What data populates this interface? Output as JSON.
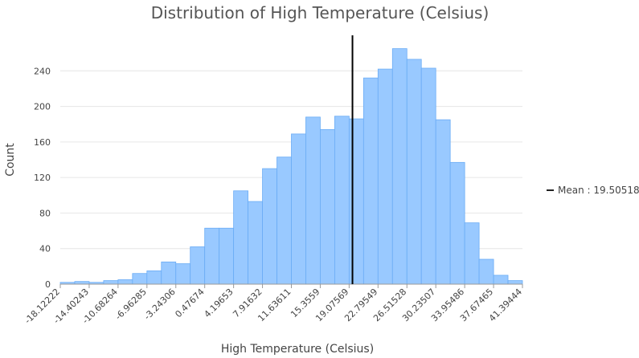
{
  "chart_data": {
    "type": "bar",
    "title": "Distribution of High Temperature (Celsius)",
    "xlabel": "High Temperature (Celsius)",
    "ylabel": "Count",
    "x_range": [
      -18.12222,
      41.39444
    ],
    "bin_width": 1.86,
    "x_tick_labels": [
      "-18.12222",
      "-14.40243",
      "-10.68264",
      "-6.96285",
      "-3.24306",
      "0.47674",
      "4.19653",
      "7.91632",
      "11.63611",
      "15.3559",
      "19.07569",
      "22.79549",
      "26.51528",
      "30.23507",
      "33.95486",
      "37.67465",
      "41.39444"
    ],
    "y_ticks": [
      0,
      40,
      80,
      120,
      160,
      200,
      240
    ],
    "ylim": [
      0,
      280
    ],
    "values": [
      2,
      3,
      2,
      4,
      5,
      12,
      15,
      25,
      23,
      42,
      63,
      63,
      105,
      93,
      130,
      143,
      169,
      188,
      174,
      189,
      186,
      232,
      242,
      265,
      253,
      243,
      185,
      137,
      69,
      28,
      10,
      4
    ],
    "grid": true,
    "bar_color": "#99c9ff",
    "bar_stroke": "#6aacf5",
    "mean": {
      "value": 19.50518,
      "label": "Mean : 19.50518",
      "color": "#000000"
    },
    "legend_position": "right"
  }
}
